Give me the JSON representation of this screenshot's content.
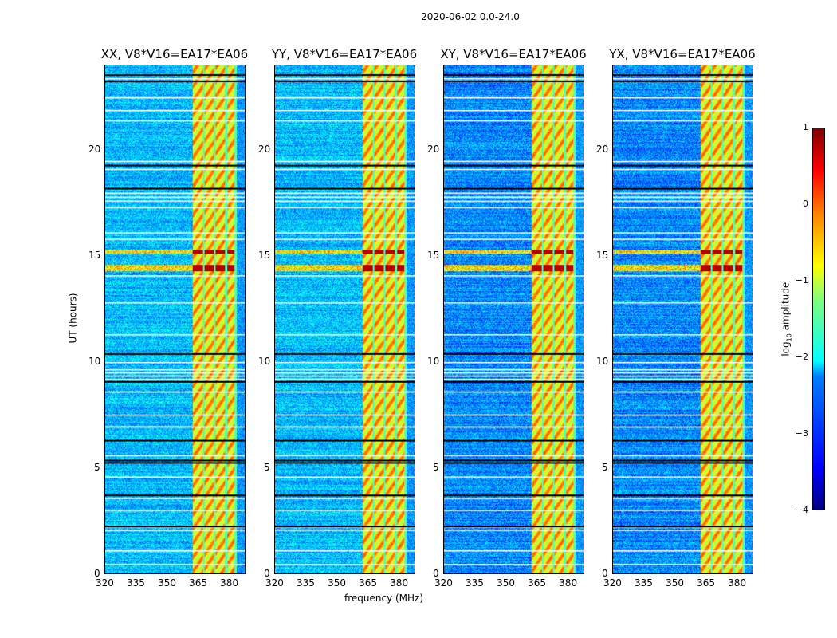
{
  "chart_data": {
    "type": "heatmap",
    "title": "2020-06-02 0.0-24.0",
    "xlabel": "frequency (MHz)",
    "ylabel": "UT (hours)",
    "xlim": [
      320,
      388
    ],
    "ylim": [
      0,
      24
    ],
    "xticks": [
      "320",
      "335",
      "350",
      "365",
      "380"
    ],
    "xtick_values": [
      320,
      335,
      350,
      365,
      380
    ],
    "yticks": [
      "0",
      "5",
      "10",
      "15",
      "20"
    ],
    "ytick_values": [
      0,
      5,
      10,
      15,
      20
    ],
    "panels": [
      {
        "title": "XX, V8*V16=EA17*EA06"
      },
      {
        "title": "YY, V8*V16=EA17*EA06"
      },
      {
        "title": "XY, V8*V16=EA17*EA06"
      },
      {
        "title": "YX, V8*V16=EA17*EA06"
      }
    ],
    "rfi_band_mhz": [
      362.4,
      383.8
    ],
    "channel_gaps_mhz": [
      367.8,
      373.2,
      378.8,
      383.4
    ],
    "flagged_hours_black": [
      23.6,
      23.3,
      19.3,
      18.2,
      10.4,
      9.1,
      6.3,
      5.37,
      5.25,
      3.7,
      2.25
    ],
    "flagged_hours_white": [
      23.4,
      22.5,
      21.9,
      21.4,
      19.5,
      19.1,
      18.0,
      17.8,
      17.6,
      17.3,
      16.1,
      15.8,
      14.1,
      12.8,
      11.3,
      10.0,
      9.65,
      9.5,
      9.35,
      9.2,
      8.6,
      7.5,
      6.95,
      5.6,
      4.6,
      3.57,
      3.0,
      2.2,
      2.07,
      1.1,
      0.45
    ],
    "strong_rfi_hours": [
      [
        14.3,
        14.6
      ],
      [
        15.1,
        15.3
      ]
    ],
    "colorbar": {
      "label": "log10 amplitude",
      "range": [
        -4,
        1
      ],
      "ticks": [
        "1",
        "0",
        "−1",
        "−2",
        "−3",
        "−4"
      ],
      "tick_values": [
        1,
        0,
        -1,
        -2,
        -3,
        -4
      ],
      "colormap": "jet"
    }
  }
}
